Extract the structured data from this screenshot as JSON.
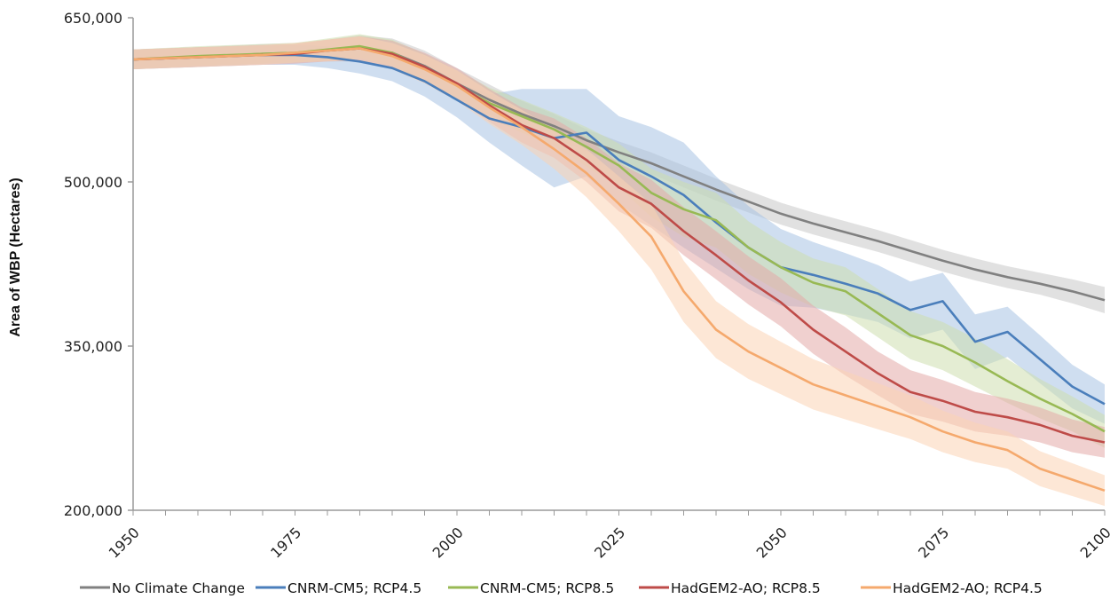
{
  "chart_data": {
    "type": "line",
    "title": "",
    "xlabel": "",
    "ylabel": "Area of WBP (Hectares)",
    "xlim": [
      1950,
      2100
    ],
    "ylim": [
      200000,
      650000
    ],
    "x_ticks": [
      "1950",
      "1975",
      "2000",
      "2025",
      "2050",
      "2075",
      "2100"
    ],
    "y_ticks": [
      "200,000",
      "350,000",
      "500,000",
      "650,000"
    ],
    "legend_position": "bottom",
    "grid": false,
    "bands": "shaded uncertainty range around each series",
    "series": [
      {
        "name": "No Climate Change",
        "color": "#808080",
        "band_color": "#c8c8c8",
        "x": [
          1950,
          1960,
          1970,
          1975,
          1980,
          1985,
          1990,
          1995,
          2000,
          2005,
          2010,
          2015,
          2020,
          2025,
          2030,
          2035,
          2040,
          2045,
          2050,
          2055,
          2060,
          2065,
          2070,
          2075,
          2080,
          2085,
          2090,
          2095,
          2100
        ],
        "y": [
          612000,
          614000,
          617000,
          618000,
          620000,
          622000,
          618000,
          606000,
          590000,
          575000,
          562000,
          551000,
          538000,
          527000,
          517000,
          505000,
          493000,
          482000,
          471000,
          462000,
          454000,
          446000,
          437000,
          428000,
          420000,
          413000,
          407000,
          400000,
          392000
        ],
        "band": [
          9000,
          9000,
          9000,
          9000,
          10000,
          12000,
          13000,
          14000,
          14000,
          14000,
          12000,
          11000,
          10000,
          10000,
          10000,
          10000,
          10000,
          10000,
          10000,
          10000,
          10000,
          10000,
          10000,
          10000,
          10000,
          10000,
          10000,
          11000,
          12000
        ]
      },
      {
        "name": "CNRM-CM5; RCP4.5",
        "color": "#4a7ebb",
        "band_color": "#a7c2e4",
        "x": [
          1950,
          1960,
          1970,
          1975,
          1980,
          1985,
          1990,
          1995,
          2000,
          2005,
          2010,
          2015,
          2020,
          2025,
          2030,
          2035,
          2040,
          2045,
          2050,
          2055,
          2060,
          2065,
          2070,
          2075,
          2080,
          2085,
          2090,
          2095,
          2100
        ],
        "y": [
          612000,
          614000,
          616000,
          616000,
          614000,
          610000,
          604000,
          592000,
          575000,
          558000,
          550000,
          540000,
          545000,
          520000,
          505000,
          488000,
          463000,
          440000,
          422000,
          415000,
          407000,
          398000,
          383000,
          391000,
          354000,
          363000,
          338000,
          313000,
          297000
        ],
        "band": [
          9000,
          9000,
          9000,
          9000,
          10000,
          11000,
          12000,
          14000,
          16000,
          22000,
          35000,
          45000,
          40000,
          40000,
          45000,
          48000,
          42000,
          38000,
          35000,
          30000,
          28000,
          26000,
          26000,
          26000,
          25000,
          23000,
          22000,
          20000,
          18000
        ]
      },
      {
        "name": "CNRM-CM5; RCP8.5",
        "color": "#98b954",
        "band_color": "#cddfae",
        "x": [
          1950,
          1960,
          1970,
          1975,
          1980,
          1985,
          1990,
          1995,
          2000,
          2005,
          2010,
          2015,
          2020,
          2025,
          2030,
          2035,
          2040,
          2045,
          2050,
          2055,
          2060,
          2065,
          2070,
          2075,
          2080,
          2085,
          2090,
          2095,
          2100
        ],
        "y": [
          612000,
          615000,
          617000,
          618000,
          621000,
          624000,
          618000,
          604000,
          588000,
          572000,
          560000,
          548000,
          532000,
          515000,
          490000,
          475000,
          465000,
          440000,
          422000,
          408000,
          400000,
          380000,
          360000,
          350000,
          335000,
          318000,
          302000,
          288000,
          272000
        ],
        "band": [
          9000,
          9000,
          9000,
          9000,
          10000,
          11000,
          12000,
          13000,
          14000,
          14000,
          15000,
          15000,
          18000,
          20000,
          22000,
          25000,
          25000,
          24000,
          23000,
          22000,
          22000,
          22000,
          22000,
          22000,
          22000,
          20000,
          18000,
          16000,
          15000
        ]
      },
      {
        "name": "HadGEM2-AO; RCP8.5",
        "color": "#be4b48",
        "band_color": "#e3aaa8",
        "x": [
          1950,
          1960,
          1970,
          1975,
          1980,
          1985,
          1990,
          1995,
          2000,
          2005,
          2010,
          2015,
          2020,
          2025,
          2030,
          2035,
          2040,
          2045,
          2050,
          2055,
          2060,
          2065,
          2070,
          2075,
          2080,
          2085,
          2090,
          2095,
          2100
        ],
        "y": [
          612000,
          614000,
          616000,
          617000,
          620000,
          622000,
          617000,
          605000,
          590000,
          570000,
          552000,
          540000,
          520000,
          495000,
          480000,
          455000,
          433000,
          410000,
          390000,
          365000,
          345000,
          325000,
          308000,
          300000,
          290000,
          285000,
          278000,
          268000,
          262000
        ],
        "band": [
          9000,
          9000,
          9000,
          9000,
          10000,
          11000,
          12000,
          13000,
          14000,
          15000,
          16000,
          18000,
          20000,
          22000,
          22000,
          22000,
          22000,
          22000,
          22000,
          22000,
          22000,
          20000,
          20000,
          19000,
          18000,
          17000,
          16000,
          15000,
          14000
        ]
      },
      {
        "name": "HadGEM2-AO; RCP4.5",
        "color": "#f5a96d",
        "band_color": "#fbd3b4",
        "x": [
          1950,
          1960,
          1970,
          1975,
          1980,
          1985,
          1990,
          1995,
          2000,
          2005,
          2010,
          2015,
          2020,
          2025,
          2030,
          2035,
          2040,
          2045,
          2050,
          2055,
          2060,
          2065,
          2070,
          2075,
          2080,
          2085,
          2090,
          2095,
          2100
        ],
        "y": [
          612000,
          614000,
          616000,
          618000,
          620000,
          622000,
          615000,
          603000,
          588000,
          568000,
          550000,
          530000,
          508000,
          480000,
          450000,
          400000,
          365000,
          345000,
          330000,
          315000,
          305000,
          295000,
          285000,
          272000,
          262000,
          255000,
          238000,
          228000,
          218000
        ],
        "band": [
          9000,
          9000,
          9000,
          9000,
          10000,
          11000,
          12000,
          13000,
          14000,
          15000,
          16000,
          18000,
          22000,
          25000,
          30000,
          28000,
          26000,
          25000,
          24000,
          23000,
          22000,
          21000,
          20000,
          19000,
          18000,
          17000,
          16000,
          15000,
          14000
        ]
      }
    ]
  }
}
